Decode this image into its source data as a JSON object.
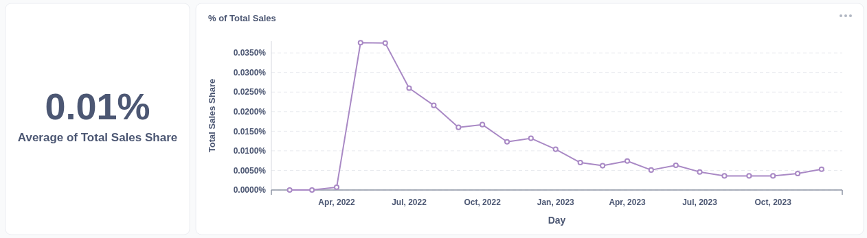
{
  "chart_data": [
    {
      "type": "other",
      "annotations": [
        "0.01%",
        "Average of Total Sales Share"
      ]
    },
    {
      "type": "line",
      "title": "% of Total Sales",
      "xlabel": "Day",
      "ylabel": "Total Sales Share",
      "x": [
        "2022-02",
        "2022-03",
        "2022-04",
        "2022-05",
        "2022-06",
        "2022-07",
        "2022-08",
        "2022-09",
        "2022-10",
        "2022-11",
        "2022-12",
        "2023-01",
        "2023-02",
        "2023-03",
        "2023-04",
        "2023-05",
        "2023-06",
        "2023-07",
        "2023-08",
        "2023-09",
        "2023-10",
        "2023-11",
        "2023-12"
      ],
      "series": [
        {
          "color": "#a989c5",
          "values": [
            0,
            0,
            0.0007,
            0.0376,
            0.0375,
            0.026,
            0.0216,
            0.016,
            0.0167,
            0.0123,
            0.0132,
            0.0104,
            0.007,
            0.0062,
            0.0074,
            0.0051,
            0.0063,
            0.0046,
            0.0036,
            0.0036,
            0.0036,
            0.0042,
            0.0053
          ]
        }
      ],
      "xlim": [
        "2022-01-09",
        "2023-12-27"
      ],
      "xticks": [
        {
          "value": "2022-04",
          "label": "Apr, 2022"
        },
        {
          "value": "2022-07",
          "label": "Jul, 2022"
        },
        {
          "value": "2022-10",
          "label": "Oct, 2022"
        },
        {
          "value": "2023-01",
          "label": "Jan, 2023"
        },
        {
          "value": "2023-04",
          "label": "Apr, 2023"
        },
        {
          "value": "2023-07",
          "label": "Jul, 2023"
        },
        {
          "value": "2023-10",
          "label": "Oct, 2023"
        }
      ],
      "yticks": [
        {
          "value": 0,
          "label": "0.0000%"
        },
        {
          "value": 0.005,
          "label": "0.0050%"
        },
        {
          "value": 0.01,
          "label": "0.0100%"
        },
        {
          "value": 0.015,
          "label": "0.0150%"
        },
        {
          "value": 0.02,
          "label": "0.0200%"
        },
        {
          "value": 0.025,
          "label": "0.0250%"
        },
        {
          "value": 0.03,
          "label": "0.0300%"
        },
        {
          "value": 0.035,
          "label": "0.0350%"
        }
      ],
      "ylim": [
        0,
        0.038
      ],
      "grid": "y",
      "marker": "circle",
      "line_style": "solid"
    }
  ]
}
